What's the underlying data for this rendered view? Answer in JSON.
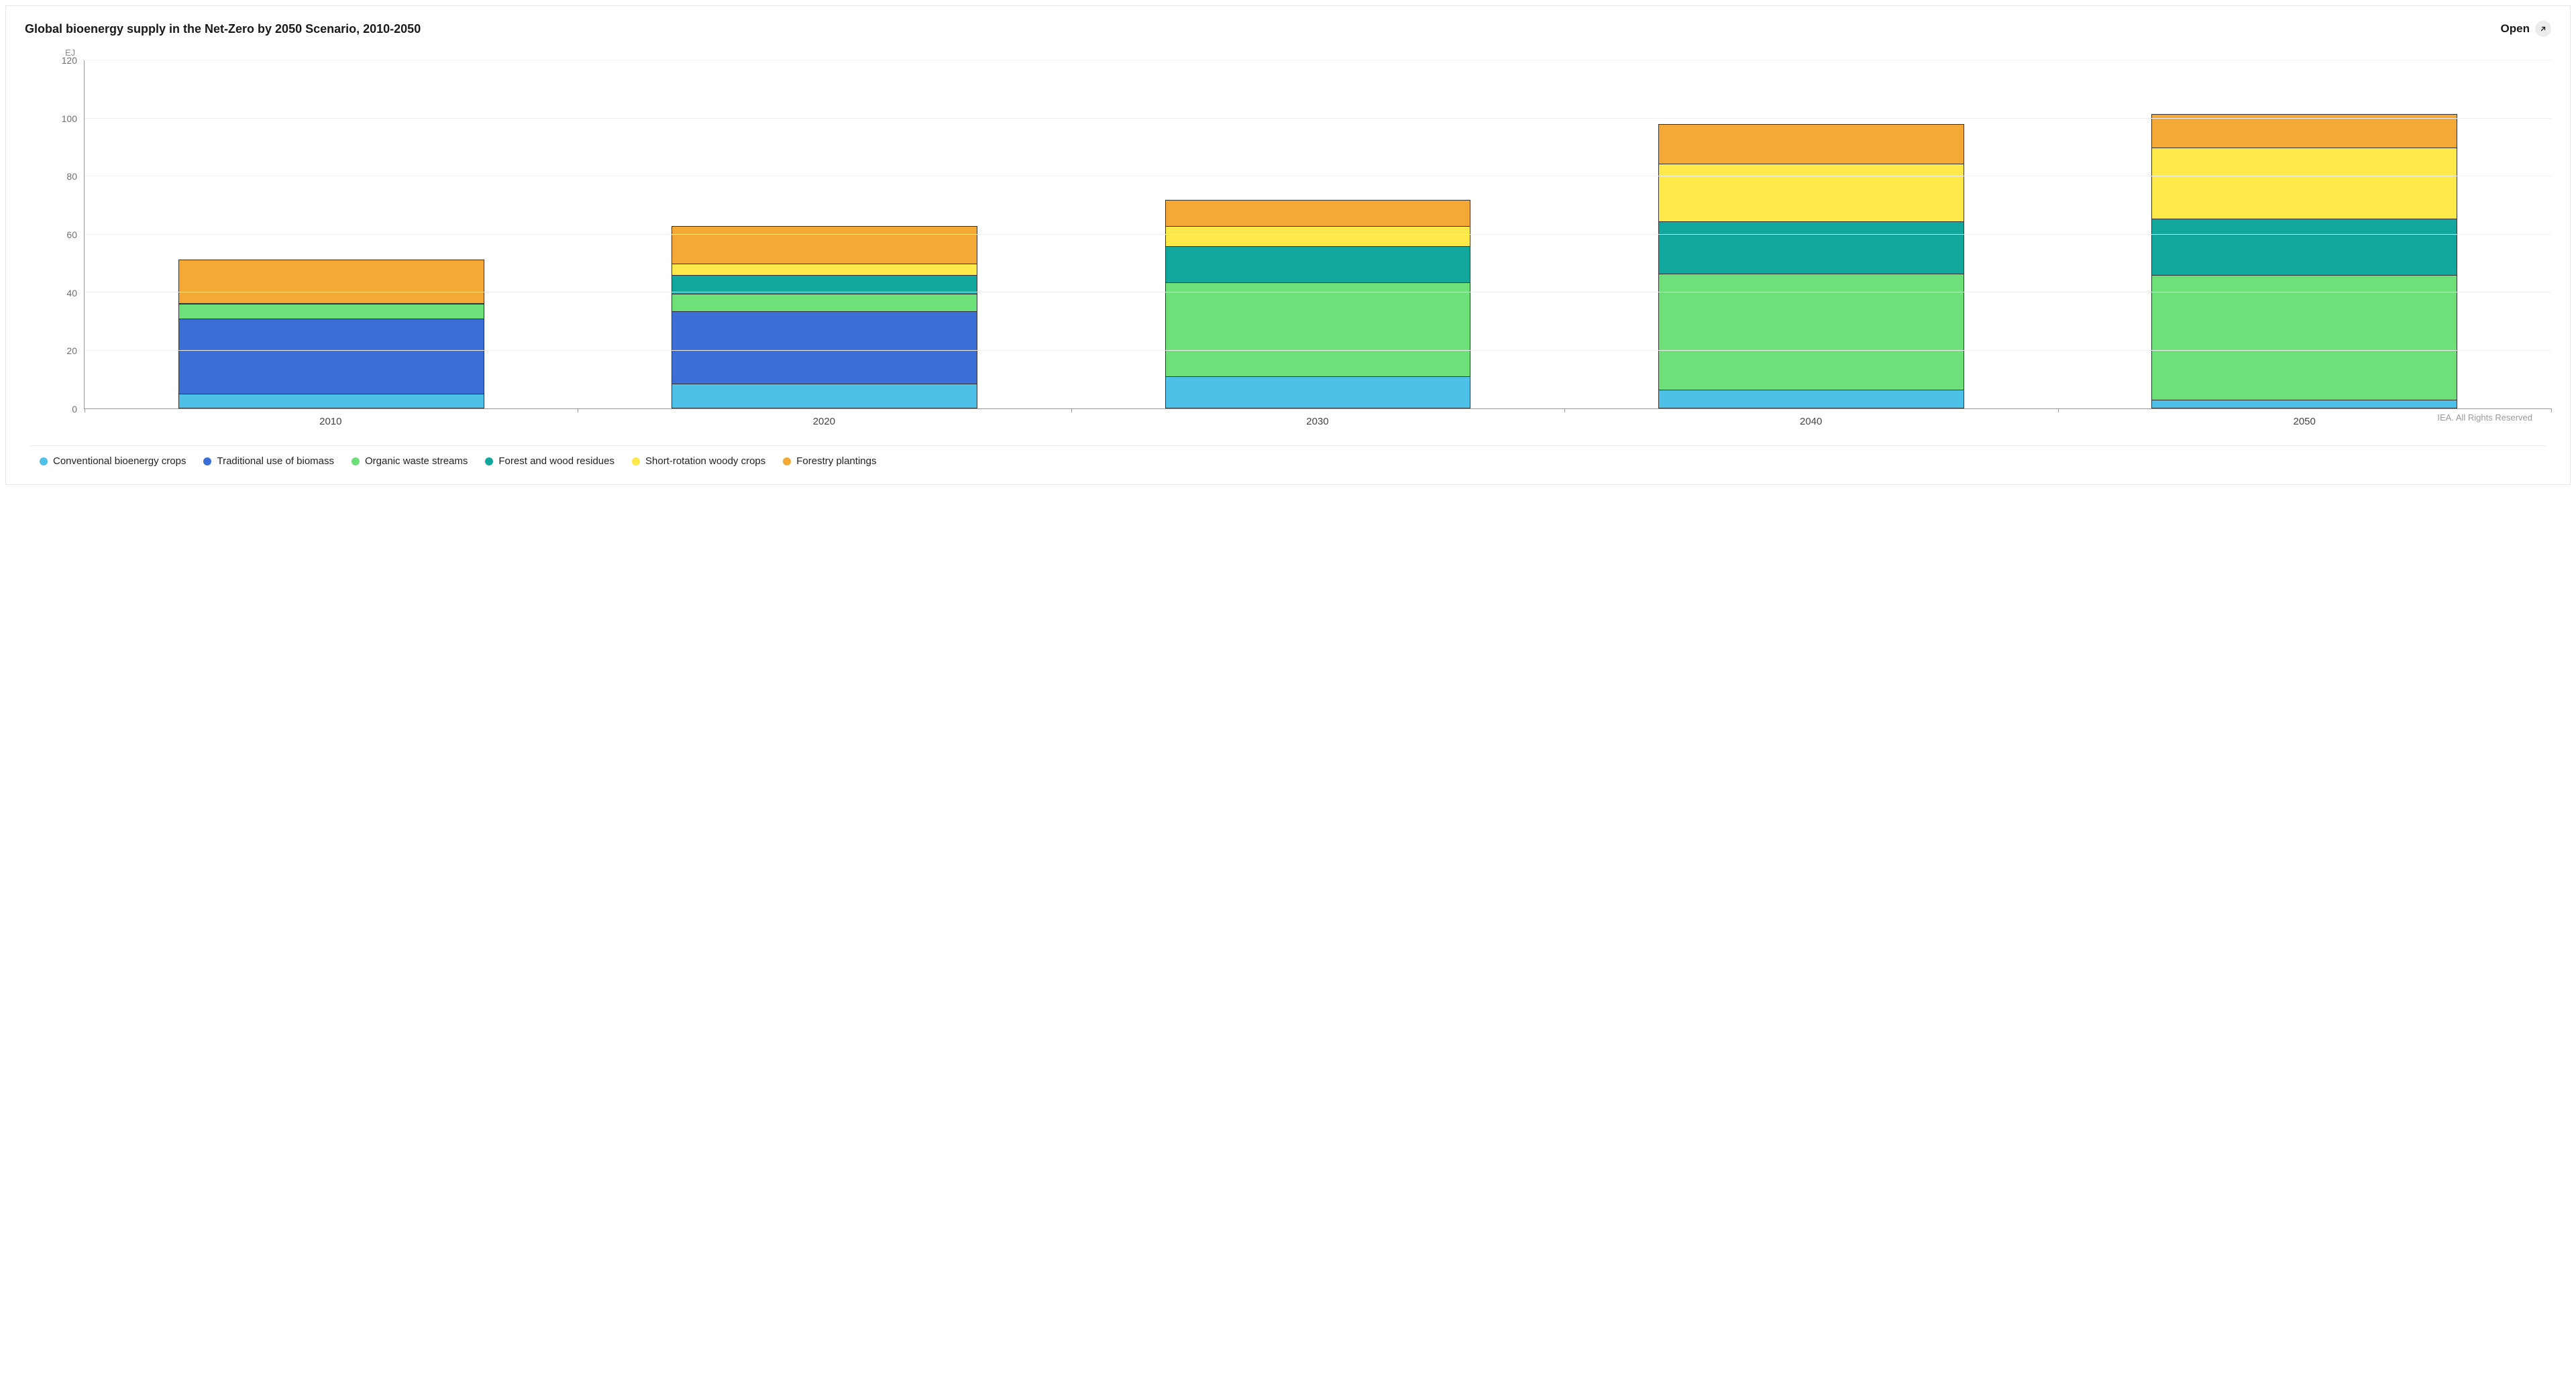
{
  "header": {
    "title": "Global bioenergy supply in the Net-Zero by 2050 Scenario, 2010-2050",
    "open_label": "Open"
  },
  "attribution": "IEA. All Rights Reserved",
  "chart": {
    "type": "stacked-bar",
    "y_unit_label": "EJ",
    "ylim": [
      0,
      120
    ],
    "ytick_step": 20,
    "yticks": [
      0,
      20,
      40,
      60,
      80,
      100,
      120
    ],
    "categories": [
      "2010",
      "2020",
      "2030",
      "2040",
      "2050"
    ],
    "bar_width_pct": 62,
    "background_color": "#ffffff",
    "grid_color": "#eeeeee",
    "axis_color": "#999999",
    "segment_border_color": "#333333",
    "series": [
      {
        "key": "conventional_bioenergy_crops",
        "label": "Conventional bioenergy crops",
        "color": "#4fc0e8",
        "values": [
          5,
          8.5,
          11,
          6.5,
          3
        ]
      },
      {
        "key": "traditional_use_of_biomass",
        "label": "Traditional use of biomass",
        "color": "#3b6fd6",
        "values": [
          26,
          25,
          0,
          0,
          0
        ]
      },
      {
        "key": "organic_waste_streams",
        "label": "Organic waste streams",
        "color": "#6de07a",
        "values": [
          5,
          6,
          32.5,
          40,
          43
        ]
      },
      {
        "key": "forest_and_wood_residues",
        "label": "Forest and wood residues",
        "color": "#12a79d",
        "values": [
          0.3,
          6.5,
          12.5,
          18,
          19.5
        ]
      },
      {
        "key": "short_rotation_woody_crops",
        "label": "Short-rotation woody crops",
        "color": "#ffe94a",
        "values": [
          0,
          4,
          7,
          20,
          24.5
        ]
      },
      {
        "key": "forestry_plantings",
        "label": "Forestry plantings",
        "color": "#f4a836",
        "values": [
          15,
          13,
          9,
          13.5,
          11.5
        ]
      }
    ]
  }
}
